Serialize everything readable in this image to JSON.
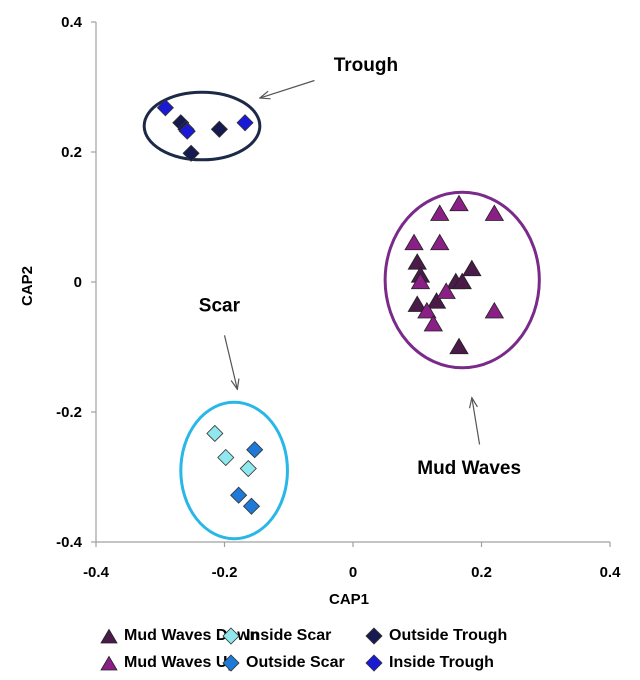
{
  "chart_data": {
    "type": "scatter",
    "title": "",
    "xlabel": "CAP1",
    "ylabel": "CAP2",
    "xlim": [
      -0.4,
      0.4
    ],
    "ylim": [
      -0.4,
      0.4
    ],
    "x_ticks": [
      "-0.4",
      "-0.2",
      "0",
      "0.2",
      "0.4"
    ],
    "y_ticks": [
      "0.4",
      "0.2",
      "0",
      "-0.2",
      "-0.4"
    ],
    "grid": false,
    "legend_position": "bottom",
    "series": [
      {
        "name": "Mud Waves Down",
        "marker": "triangle",
        "color": "#4a1a48",
        "points": [
          [
            0.1,
            0.03
          ],
          [
            0.105,
            0.01
          ],
          [
            0.1,
            -0.035
          ],
          [
            0.13,
            -0.03
          ],
          [
            0.16,
            0.0
          ],
          [
            0.185,
            0.02
          ],
          [
            0.165,
            -0.1
          ],
          [
            0.17,
            0.0
          ]
        ]
      },
      {
        "name": "Mud Waves Up",
        "marker": "triangle",
        "color": "#8a1f86",
        "points": [
          [
            0.095,
            0.06
          ],
          [
            0.135,
            0.105
          ],
          [
            0.165,
            0.12
          ],
          [
            0.22,
            0.105
          ],
          [
            0.135,
            0.06
          ],
          [
            0.105,
            0.0
          ],
          [
            0.115,
            -0.045
          ],
          [
            0.125,
            -0.065
          ],
          [
            0.145,
            -0.015
          ],
          [
            0.22,
            -0.045
          ]
        ]
      },
      {
        "name": "Inside Scar",
        "marker": "diamond",
        "color": "#8fe8ee",
        "points": [
          [
            -0.215,
            -0.233
          ],
          [
            -0.198,
            -0.27
          ],
          [
            -0.163,
            -0.287
          ]
        ]
      },
      {
        "name": "Outside Scar",
        "marker": "diamond",
        "color": "#1e7ad6",
        "points": [
          [
            -0.153,
            -0.258
          ],
          [
            -0.178,
            -0.328
          ],
          [
            -0.158,
            -0.345
          ]
        ]
      },
      {
        "name": "Outside Trough",
        "marker": "diamond",
        "color": "#161a4e",
        "points": [
          [
            -0.268,
            0.245
          ],
          [
            -0.26,
            0.235
          ],
          [
            -0.252,
            0.198
          ],
          [
            -0.208,
            0.235
          ]
        ]
      },
      {
        "name": "Inside Trough",
        "marker": "diamond",
        "color": "#1a1ad6",
        "points": [
          [
            -0.292,
            0.268
          ],
          [
            -0.258,
            0.232
          ],
          [
            -0.168,
            0.245
          ]
        ]
      }
    ],
    "groups": [
      {
        "label": "Trough",
        "color": "#1c2a48",
        "cx": -0.235,
        "cy": 0.24,
        "rx": 0.09,
        "ry": 0.052
      },
      {
        "label": "Mud Waves",
        "color": "#7a2b8a",
        "cx": 0.17,
        "cy": 0.003,
        "rx": 0.12,
        "ry": 0.135
      },
      {
        "label": "Scar",
        "color": "#29b7e8",
        "cx": -0.185,
        "cy": -0.29,
        "rx": 0.083,
        "ry": 0.105
      }
    ],
    "annotations": [
      {
        "text": "Trough",
        "tx": -0.03,
        "ty": 0.325,
        "ax1": -0.06,
        "ay1": 0.31,
        "ax2": -0.145,
        "ay2": 0.283
      },
      {
        "text": "Scar",
        "tx": -0.24,
        "ty": -0.045,
        "ax1": -0.2,
        "ay1": -0.082,
        "ax2": -0.18,
        "ay2": -0.165
      },
      {
        "text": "Mud Waves",
        "tx": 0.1,
        "ty": -0.295,
        "ax1": 0.197,
        "ay1": -0.25,
        "ax2": 0.185,
        "ay2": -0.178
      }
    ]
  }
}
